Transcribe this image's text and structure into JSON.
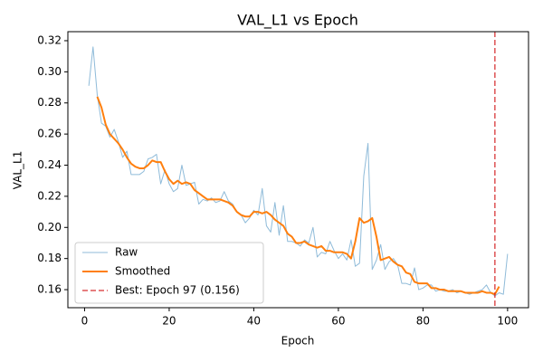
{
  "chart_data": {
    "type": "line",
    "title": "VAL_L1 vs Epoch",
    "xlabel": "Epoch",
    "ylabel": "VAL_L1",
    "xlim": [
      -3.95,
      104.95
    ],
    "ylim": [
      0.1484,
      0.3258
    ],
    "xticks": [
      0,
      20,
      40,
      60,
      80,
      100
    ],
    "yticks": [
      0.16,
      0.18,
      {
        "value": 0.2,
        "label": "0.20"
      },
      0.22,
      0.24,
      0.26,
      0.28,
      {
        "value": 0.3,
        "label": "0.30"
      },
      0.32
    ],
    "legend": "lower left",
    "series": [
      {
        "name": "Raw",
        "color": "#1f77b4",
        "opacity": 0.5,
        "width": 1,
        "x": [
          1,
          2,
          3,
          4,
          5,
          6,
          7,
          8,
          9,
          10,
          11,
          12,
          13,
          14,
          15,
          16,
          17,
          18,
          19,
          20,
          21,
          22,
          23,
          24,
          25,
          26,
          27,
          28,
          29,
          30,
          31,
          32,
          33,
          34,
          35,
          36,
          37,
          38,
          39,
          40,
          41,
          42,
          43,
          44,
          45,
          46,
          47,
          48,
          49,
          50,
          51,
          52,
          53,
          54,
          55,
          56,
          57,
          58,
          59,
          60,
          61,
          62,
          63,
          64,
          65,
          66,
          67,
          68,
          69,
          70,
          71,
          72,
          73,
          74,
          75,
          76,
          77,
          78,
          79,
          80,
          81,
          82,
          83,
          84,
          85,
          86,
          87,
          88,
          89,
          90,
          91,
          92,
          93,
          94,
          95,
          96,
          97,
          98,
          99,
          100
        ],
        "values": [
          0.291,
          0.316,
          0.285,
          0.267,
          0.265,
          0.258,
          0.263,
          0.255,
          0.245,
          0.249,
          0.234,
          0.234,
          0.234,
          0.236,
          0.244,
          0.245,
          0.247,
          0.228,
          0.237,
          0.228,
          0.223,
          0.225,
          0.24,
          0.227,
          0.228,
          0.229,
          0.215,
          0.218,
          0.217,
          0.219,
          0.216,
          0.217,
          0.223,
          0.217,
          0.215,
          0.21,
          0.208,
          0.203,
          0.206,
          0.211,
          0.208,
          0.225,
          0.201,
          0.197,
          0.216,
          0.195,
          0.214,
          0.191,
          0.191,
          0.19,
          0.188,
          0.192,
          0.19,
          0.2,
          0.181,
          0.184,
          0.183,
          0.191,
          0.185,
          0.18,
          0.183,
          0.179,
          0.192,
          0.175,
          0.177,
          0.233,
          0.254,
          0.173,
          0.179,
          0.189,
          0.173,
          0.178,
          0.18,
          0.176,
          0.164,
          0.164,
          0.163,
          0.174,
          0.16,
          0.161,
          0.163,
          0.163,
          0.159,
          0.16,
          0.159,
          0.159,
          0.16,
          0.158,
          0.159,
          0.158,
          0.157,
          0.158,
          0.159,
          0.16,
          0.163,
          0.158,
          0.156,
          0.158,
          0.157,
          0.183
        ]
      },
      {
        "name": "Smoothed",
        "color": "#ff7f0e",
        "opacity": 1,
        "width": 2,
        "x": [
          3,
          4,
          5,
          6,
          7,
          8,
          9,
          10,
          11,
          12,
          13,
          14,
          15,
          16,
          17,
          18,
          19,
          20,
          21,
          22,
          23,
          24,
          25,
          26,
          27,
          28,
          29,
          30,
          31,
          32,
          33,
          34,
          35,
          36,
          37,
          38,
          39,
          40,
          41,
          42,
          43,
          44,
          45,
          46,
          47,
          48,
          49,
          50,
          51,
          52,
          53,
          54,
          55,
          56,
          57,
          58,
          59,
          60,
          61,
          62,
          63,
          64,
          65,
          66,
          67,
          68,
          69,
          70,
          71,
          72,
          73,
          74,
          75,
          76,
          77,
          78,
          79,
          80,
          81,
          82,
          83,
          84,
          85,
          86,
          87,
          88,
          89,
          90,
          91,
          92,
          93,
          94,
          95,
          96,
          97,
          98
        ],
        "values": [
          0.284,
          0.277,
          0.266,
          0.26,
          0.257,
          0.254,
          0.25,
          0.245,
          0.241,
          0.239,
          0.238,
          0.238,
          0.24,
          0.243,
          0.242,
          0.242,
          0.236,
          0.231,
          0.228,
          0.23,
          0.228,
          0.229,
          0.228,
          0.224,
          0.222,
          0.22,
          0.218,
          0.218,
          0.218,
          0.218,
          0.217,
          0.216,
          0.214,
          0.21,
          0.208,
          0.207,
          0.207,
          0.21,
          0.21,
          0.209,
          0.21,
          0.208,
          0.205,
          0.203,
          0.201,
          0.196,
          0.194,
          0.19,
          0.19,
          0.191,
          0.189,
          0.188,
          0.187,
          0.188,
          0.185,
          0.185,
          0.184,
          0.184,
          0.184,
          0.183,
          0.18,
          0.191,
          0.206,
          0.203,
          0.204,
          0.206,
          0.194,
          0.179,
          0.18,
          0.181,
          0.178,
          0.176,
          0.175,
          0.171,
          0.17,
          0.165,
          0.164,
          0.164,
          0.164,
          0.161,
          0.161,
          0.16,
          0.16,
          0.159,
          0.159,
          0.159,
          0.159,
          0.158,
          0.158,
          0.158,
          0.158,
          0.159,
          0.158,
          0.158,
          0.157,
          0.162
        ]
      }
    ],
    "vline": {
      "x": 97,
      "color": "#d62728",
      "label": "Best: Epoch 97 (0.156)"
    }
  }
}
